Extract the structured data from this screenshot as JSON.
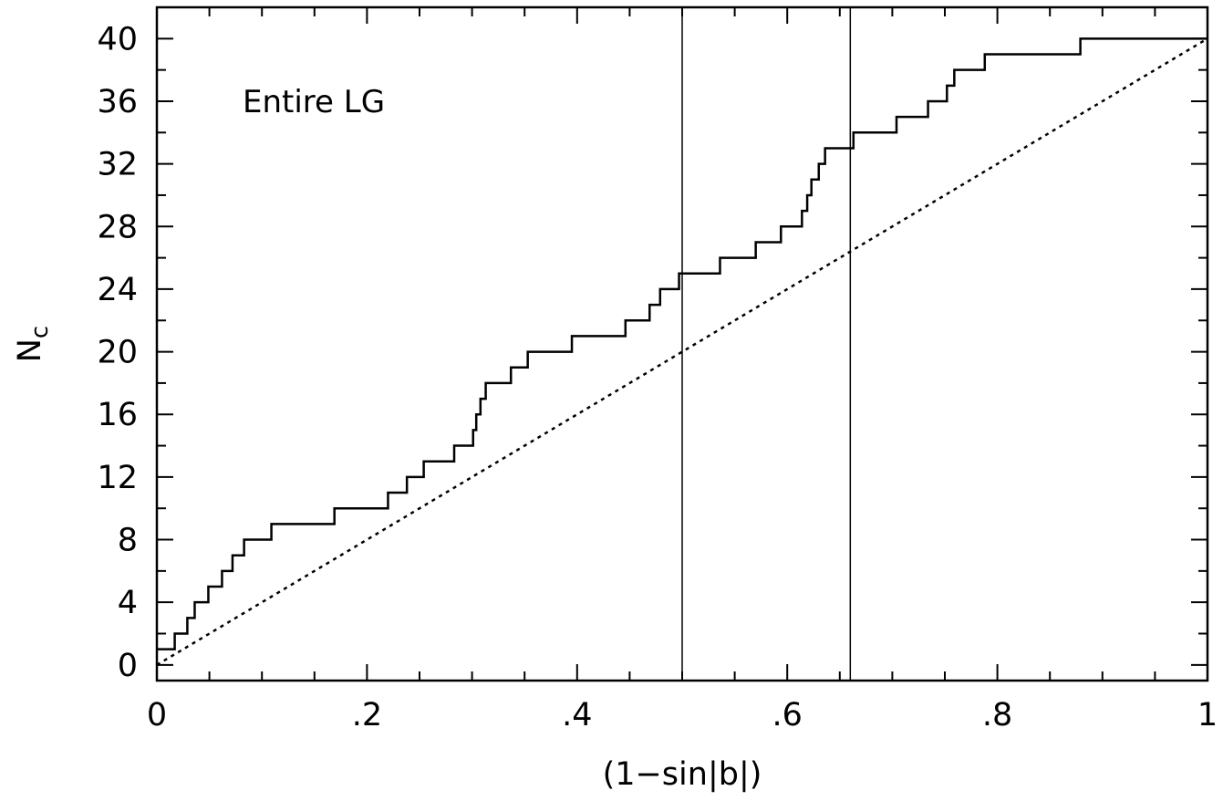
{
  "chart_data": {
    "type": "line",
    "xlabel": "(1−sin|b|)",
    "ylabel": {
      "main": "N",
      "sub": "c"
    },
    "xlim": [
      0,
      1
    ],
    "ylim": [
      -1,
      42
    ],
    "annotation": "Entire LG",
    "x_ticks": [
      {
        "value": 0,
        "label": "0"
      },
      {
        "value": 0.2,
        "label": ".2"
      },
      {
        "value": 0.4,
        "label": ".4"
      },
      {
        "value": 0.6,
        "label": ".6"
      },
      {
        "value": 0.8,
        "label": ".8"
      },
      {
        "value": 1,
        "label": "1"
      }
    ],
    "y_ticks": [
      {
        "value": 0,
        "label": "0"
      },
      {
        "value": 4,
        "label": "4"
      },
      {
        "value": 8,
        "label": "8"
      },
      {
        "value": 12,
        "label": "12"
      },
      {
        "value": 16,
        "label": "16"
      },
      {
        "value": 20,
        "label": "20"
      },
      {
        "value": 24,
        "label": "24"
      },
      {
        "value": 28,
        "label": "28"
      },
      {
        "value": 32,
        "label": "32"
      },
      {
        "value": 36,
        "label": "36"
      },
      {
        "value": 40,
        "label": "40"
      }
    ],
    "vertical_lines": [
      0.5,
      0.66
    ],
    "series": [
      {
        "style": "step",
        "x": [
          0.0,
          0.017,
          0.029,
          0.036,
          0.049,
          0.062,
          0.072,
          0.083,
          0.109,
          0.169,
          0.22,
          0.238,
          0.254,
          0.283,
          0.301,
          0.304,
          0.308,
          0.313,
          0.32,
          0.337,
          0.353,
          0.395,
          0.446,
          0.469,
          0.479,
          0.497,
          0.536,
          0.57,
          0.594,
          0.614,
          0.619,
          0.623,
          0.625,
          0.63,
          0.636,
          0.663,
          0.704,
          0.734,
          0.752,
          0.755,
          0.759,
          0.788,
          0.879,
          1.0
        ],
        "y": [
          1,
          2,
          3,
          4,
          5,
          6,
          7,
          8,
          9,
          10,
          11,
          12,
          13,
          14,
          15,
          16,
          17,
          18,
          18,
          19,
          20,
          21,
          22,
          23,
          24,
          25,
          26,
          27,
          28,
          29,
          30,
          31,
          31,
          32,
          33,
          34,
          35,
          36,
          37,
          37,
          38,
          39,
          40,
          40
        ]
      },
      {
        "style": "dotted",
        "x": [
          0,
          1
        ],
        "y": [
          0,
          40
        ]
      }
    ]
  }
}
